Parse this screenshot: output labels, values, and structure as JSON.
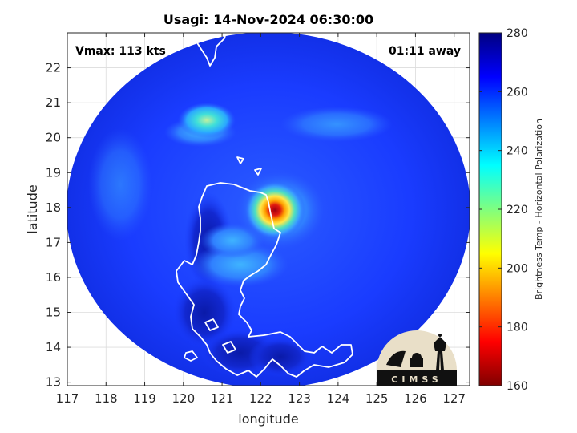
{
  "title": "Usagi: 14-Nov-2024 06:30:00",
  "vmax_label": "Vmax: 113 kts",
  "time_away_label": "01:11 away",
  "map": {
    "xlabel": "longitude",
    "ylabel": "latitude",
    "xlim": [
      117,
      127.4
    ],
    "ylim": [
      12.9,
      23
    ],
    "xticks": [
      "117",
      "118",
      "119",
      "120",
      "121",
      "122",
      "123",
      "124",
      "125",
      "126",
      "127"
    ],
    "yticks": [
      "13",
      "14",
      "15",
      "16",
      "17",
      "18",
      "19",
      "20",
      "21",
      "22"
    ],
    "grid": true,
    "storm_center": {
      "lon": 122.3,
      "lat": 17.9
    },
    "coastline_color": "#ffffff"
  },
  "colorbar": {
    "label": "Brightness Temp - Horizontal Polarization",
    "range": [
      160,
      280
    ],
    "ticks": [
      "280",
      "260",
      "240",
      "220",
      "200",
      "180",
      "160"
    ],
    "colormap": "jet"
  },
  "logo": {
    "text": "CIMSS"
  },
  "colors": {
    "background_scan": "#1e3cff",
    "eyewall": "#b4000c",
    "logo_bg": "#e9dfc8"
  }
}
